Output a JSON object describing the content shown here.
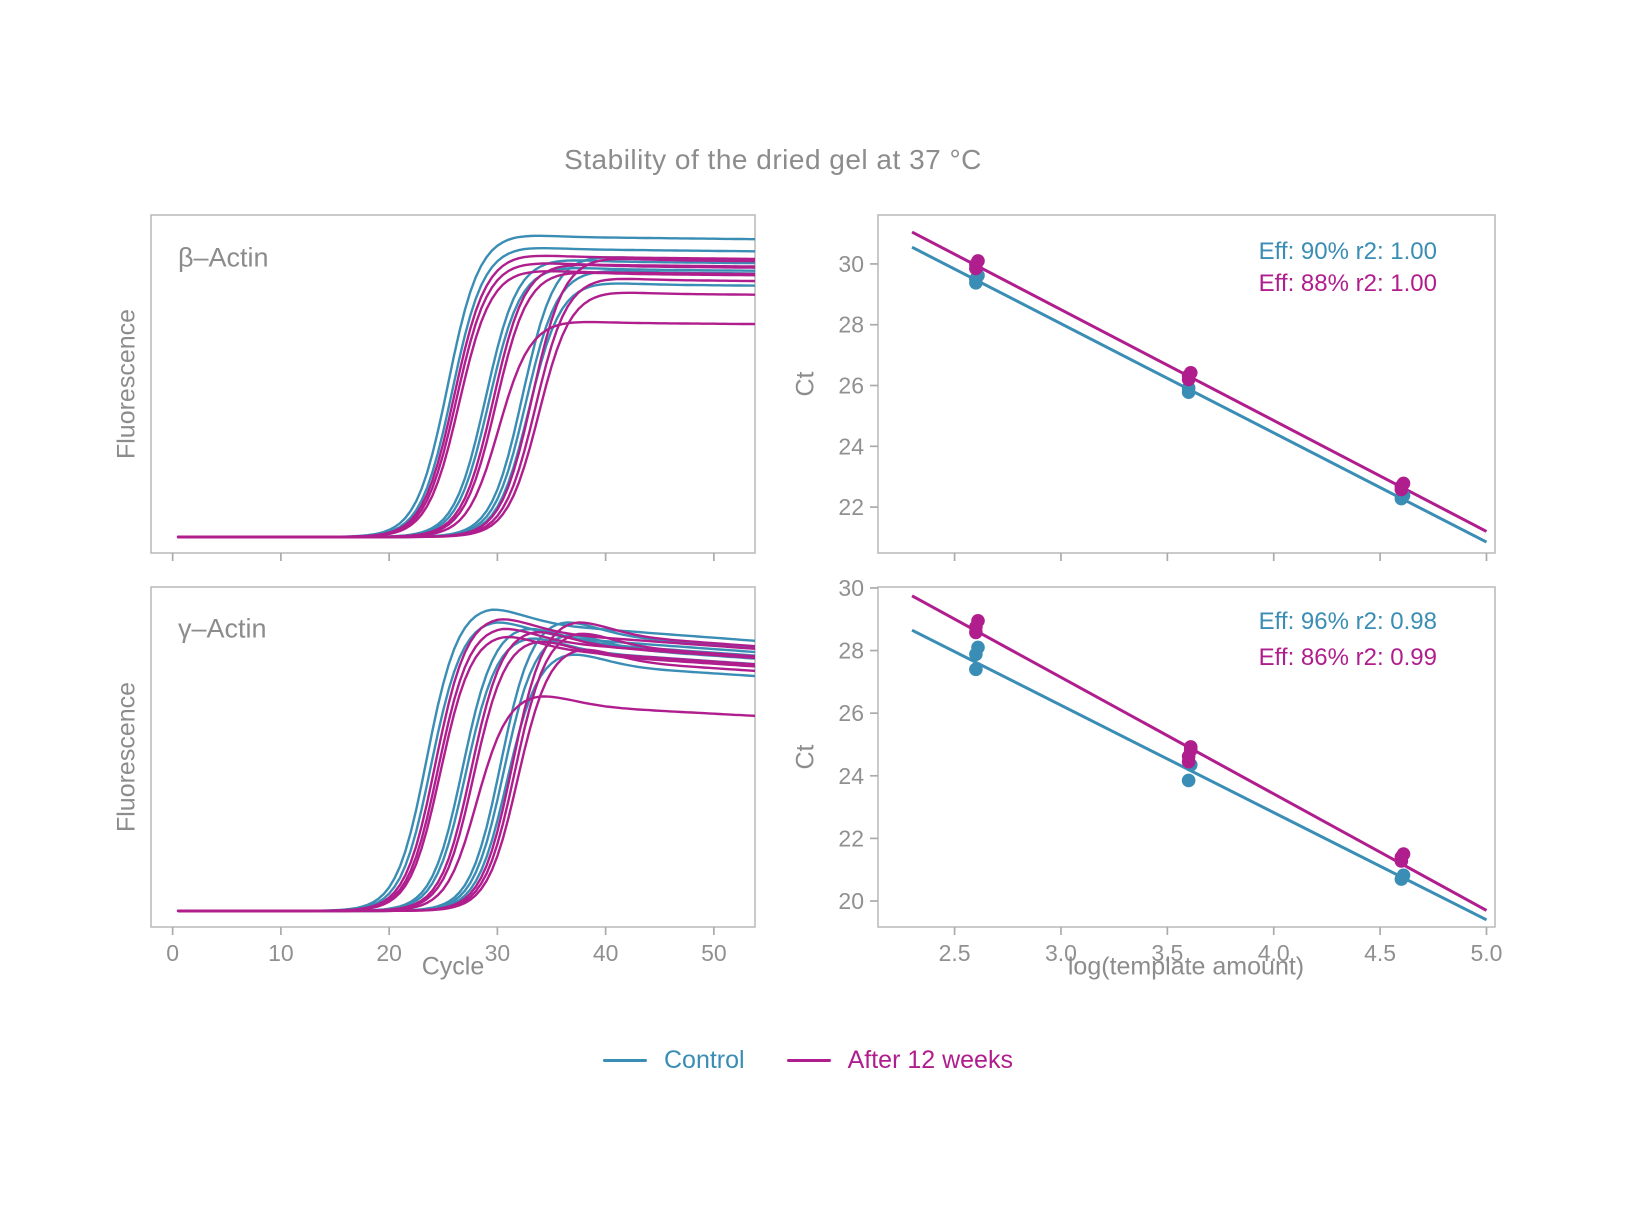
{
  "title": "Stability of the dried gel at 37 °C",
  "colors": {
    "control": "#3a8db4",
    "after": "#b01e8e",
    "text": "#8c8c8c",
    "tick_label": "#909090",
    "panel_border": "#b9b9b9",
    "tick_mark": "#ababab",
    "background": "#ffffff"
  },
  "legend": {
    "items": [
      {
        "label": "Control",
        "color": "control"
      },
      {
        "label": "After 12 weeks",
        "color": "after"
      }
    ]
  },
  "axis_labels": {
    "fluorescence": "Fluorescence",
    "ct": "Ct",
    "cycle": "Cycle",
    "log_template": "log(template amount)"
  },
  "chart_data": [
    {
      "id": "amp-beta",
      "type": "line",
      "inset_label": "β–Actin",
      "xlabel": "Cycle",
      "ylabel": "Fluorescence",
      "xlim": [
        -2,
        53.8
      ],
      "ylim": [
        -0.03,
        1.07
      ],
      "xticks": {
        "values": [
          0,
          10,
          20,
          30,
          40,
          50
        ],
        "labels": [
          "0",
          "10",
          "20",
          "30",
          "40",
          "50"
        ],
        "show_labels": false
      },
      "yticks": null,
      "baseline": 0.022,
      "curve_model": "sigmoid",
      "series": [
        {
          "name": "Control",
          "color": "control",
          "rate": 1.45,
          "overshoot": 0.01,
          "decay": 0.0004,
          "curves": [
            {
              "mid": 25.4,
              "plateau": 1.0
            },
            {
              "mid": 25.8,
              "plateau": 0.96
            },
            {
              "mid": 28.9,
              "plateau": 0.92
            },
            {
              "mid": 29.2,
              "plateau": 0.895
            },
            {
              "mid": 32.3,
              "plateau": 0.93
            },
            {
              "mid": 32.6,
              "plateau": 0.885
            },
            {
              "mid": 32.9,
              "plateau": 0.845
            }
          ]
        },
        {
          "name": "After 12 weeks",
          "color": "after",
          "rate": 1.45,
          "overshoot": 0.01,
          "decay": 0.0004,
          "curves": [
            {
              "mid": 26.0,
              "plateau": 0.935
            },
            {
              "mid": 26.2,
              "plateau": 0.91
            },
            {
              "mid": 26.45,
              "plateau": 0.885
            },
            {
              "mid": 29.6,
              "plateau": 0.905
            },
            {
              "mid": 29.85,
              "plateau": 0.88
            },
            {
              "mid": 30.1,
              "plateau": 0.72
            },
            {
              "mid": 33.2,
              "plateau": 0.925
            },
            {
              "mid": 33.5,
              "plateau": 0.86
            },
            {
              "mid": 33.8,
              "plateau": 0.815
            }
          ]
        }
      ]
    },
    {
      "id": "std-beta",
      "type": "scatter",
      "ylabel": "Ct",
      "xlim": [
        2.14,
        5.04
      ],
      "ylim": [
        20.49,
        31.61
      ],
      "xticks": {
        "values": [
          2.5,
          3.0,
          3.5,
          4.0,
          4.5,
          5.0
        ],
        "labels": [
          "2.5",
          "3.0",
          "3.5",
          "4.0",
          "4.5",
          "5.0"
        ],
        "show_labels": false
      },
      "yticks": {
        "values": [
          22,
          24,
          26,
          28,
          30
        ],
        "labels": [
          "22",
          "24",
          "26",
          "28",
          "30"
        ]
      },
      "annotations": [
        {
          "text": "Eff: 90% r2: 1.00",
          "color": "control"
        },
        {
          "text": "Eff: 88% r2: 1.00",
          "color": "after"
        }
      ],
      "series": [
        {
          "name": "Control",
          "color": "control",
          "points": [
            [
              2.6,
              29.38
            ],
            [
              2.6,
              29.5
            ],
            [
              2.61,
              29.62
            ],
            [
              3.6,
              25.78
            ],
            [
              3.6,
              25.92
            ],
            [
              4.6,
              22.28
            ],
            [
              4.61,
              22.38
            ]
          ],
          "fit": {
            "x1": 2.3,
            "y1": 30.55,
            "x2": 5.0,
            "y2": 20.85
          }
        },
        {
          "name": "After 12 weeks",
          "color": "after",
          "points": [
            [
              2.6,
              29.85
            ],
            [
              2.6,
              29.98
            ],
            [
              2.61,
              30.1
            ],
            [
              3.6,
              26.2
            ],
            [
              3.6,
              26.32
            ],
            [
              3.61,
              26.42
            ],
            [
              4.6,
              22.58
            ],
            [
              4.6,
              22.68
            ],
            [
              4.61,
              22.78
            ]
          ],
          "fit": {
            "x1": 2.3,
            "y1": 31.05,
            "x2": 5.0,
            "y2": 21.2
          }
        }
      ]
    },
    {
      "id": "amp-gamma",
      "type": "line",
      "inset_label": "γ–Actin",
      "xlabel": "Cycle",
      "ylabel": "Fluorescence",
      "xlim": [
        -2,
        53.8
      ],
      "ylim": [
        -0.03,
        1.07
      ],
      "xticks": {
        "values": [
          0,
          10,
          20,
          30,
          40,
          50
        ],
        "labels": [
          "0",
          "10",
          "20",
          "30",
          "40",
          "50"
        ],
        "show_labels": true
      },
      "yticks": null,
      "baseline": 0.022,
      "curve_model": "sigmoid",
      "series": [
        {
          "name": "Control",
          "color": "control",
          "rate": 1.4,
          "overshoot": 0.055,
          "decay": 0.0028,
          "curves": [
            {
              "mid": 23.4,
              "plateau": 0.96
            },
            {
              "mid": 23.8,
              "plateau": 0.92
            },
            {
              "mid": 26.7,
              "plateau": 0.9
            },
            {
              "mid": 27.0,
              "plateau": 0.87
            },
            {
              "mid": 30.2,
              "plateau": 0.92
            },
            {
              "mid": 30.5,
              "plateau": 0.88
            },
            {
              "mid": 30.8,
              "plateau": 0.82
            }
          ]
        },
        {
          "name": "After 12 weeks",
          "color": "after",
          "rate": 1.4,
          "overshoot": 0.055,
          "decay": 0.0028,
          "curves": [
            {
              "mid": 24.2,
              "plateau": 0.93
            },
            {
              "mid": 24.45,
              "plateau": 0.9
            },
            {
              "mid": 24.65,
              "plateau": 0.875
            },
            {
              "mid": 27.5,
              "plateau": 0.89
            },
            {
              "mid": 27.75,
              "plateau": 0.86
            },
            {
              "mid": 28.0,
              "plateau": 0.69
            },
            {
              "mid": 31.3,
              "plateau": 0.92
            },
            {
              "mid": 31.55,
              "plateau": 0.885
            },
            {
              "mid": 31.8,
              "plateau": 0.835
            }
          ]
        }
      ]
    },
    {
      "id": "std-gamma",
      "type": "scatter",
      "ylabel": "Ct",
      "xlabel": "log(template amount)",
      "xlim": [
        2.14,
        5.04
      ],
      "ylim": [
        19.17,
        30.03
      ],
      "xticks": {
        "values": [
          2.5,
          3.0,
          3.5,
          4.0,
          4.5,
          5.0
        ],
        "labels": [
          "2.5",
          "3.0",
          "3.5",
          "4.0",
          "4.5",
          "5.0"
        ],
        "show_labels": true
      },
      "yticks": {
        "values": [
          20,
          22,
          24,
          26,
          28,
          30
        ],
        "labels": [
          "20",
          "22",
          "24",
          "26",
          "28",
          "30"
        ]
      },
      "annotations": [
        {
          "text": "Eff: 96% r2: 0.98",
          "color": "control"
        },
        {
          "text": "Eff: 86% r2: 0.99",
          "color": "after"
        }
      ],
      "series": [
        {
          "name": "Control",
          "color": "control",
          "points": [
            [
              2.6,
              27.4
            ],
            [
              2.6,
              27.88
            ],
            [
              2.61,
              28.1
            ],
            [
              3.6,
              23.85
            ],
            [
              3.61,
              24.35
            ],
            [
              4.6,
              20.7
            ],
            [
              4.61,
              20.82
            ]
          ],
          "fit": {
            "x1": 2.3,
            "y1": 28.65,
            "x2": 5.0,
            "y2": 19.4
          }
        },
        {
          "name": "After 12 weeks",
          "color": "after",
          "points": [
            [
              2.6,
              28.58
            ],
            [
              2.6,
              28.75
            ],
            [
              2.61,
              28.95
            ],
            [
              3.6,
              24.45
            ],
            [
              3.6,
              24.62
            ],
            [
              3.61,
              24.82
            ],
            [
              3.61,
              24.92
            ],
            [
              4.6,
              21.28
            ],
            [
              4.6,
              21.4
            ],
            [
              4.61,
              21.5
            ]
          ],
          "fit": {
            "x1": 2.3,
            "y1": 29.75,
            "x2": 5.0,
            "y2": 19.7
          }
        }
      ]
    }
  ]
}
